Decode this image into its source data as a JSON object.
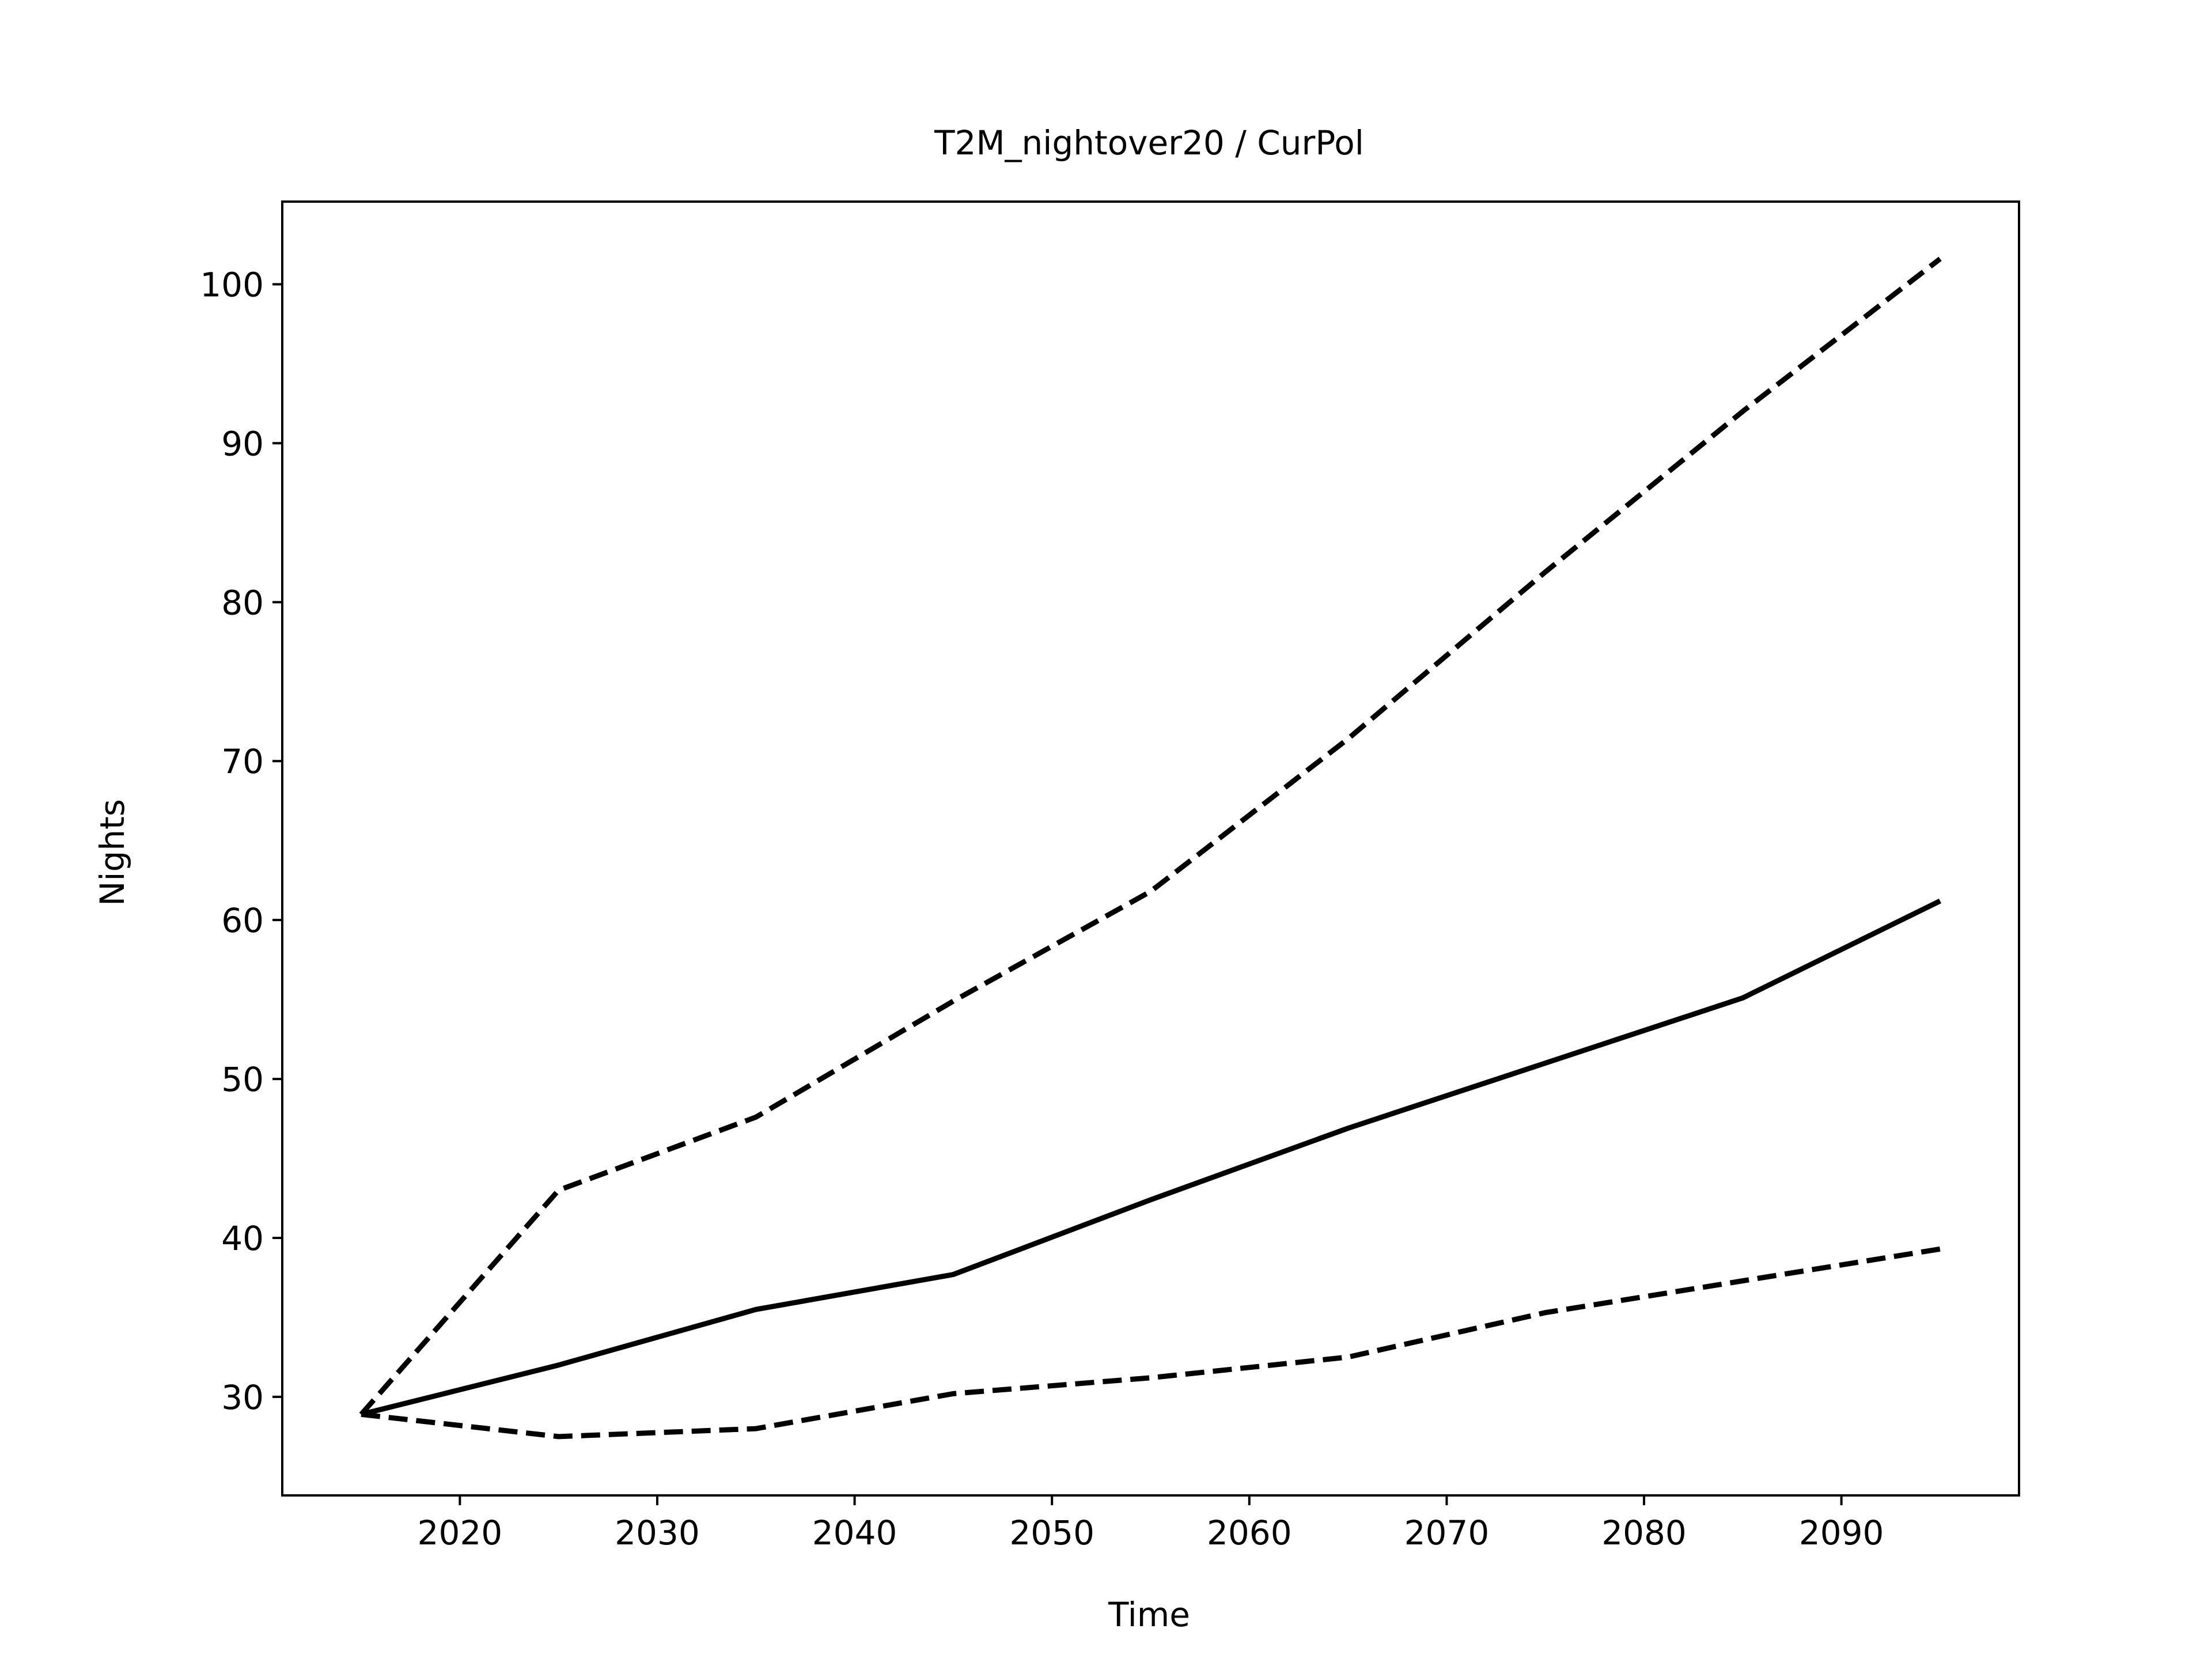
{
  "chart_data": {
    "type": "line",
    "title": "T2M_nightover20 / CurPol",
    "xlabel": "Time",
    "ylabel": "Nights",
    "xlim": [
      2011,
      2099
    ],
    "ylim": [
      23.8,
      105.2
    ],
    "xticks": [
      2020,
      2030,
      2040,
      2050,
      2060,
      2070,
      2080,
      2090
    ],
    "yticks": [
      30,
      40,
      50,
      60,
      70,
      80,
      90,
      100
    ],
    "grid": false,
    "legend": "none",
    "series": [
      {
        "style": "solid",
        "color": "#000000",
        "x": [
          2015,
          2025,
          2035,
          2045,
          2055,
          2065,
          2075,
          2085,
          2095
        ],
        "y": [
          28.9,
          32.0,
          35.5,
          37.7,
          42.4,
          46.9,
          51.0,
          55.1,
          61.2
        ]
      },
      {
        "style": "dashed",
        "color": "#000000",
        "x": [
          2015,
          2025,
          2035,
          2045,
          2055,
          2065,
          2075,
          2085,
          2095
        ],
        "y": [
          28.9,
          43.0,
          47.6,
          54.9,
          61.8,
          71.4,
          81.9,
          92.0,
          101.6
        ]
      },
      {
        "style": "dashed",
        "color": "#000000",
        "x": [
          2015,
          2025,
          2035,
          2045,
          2055,
          2065,
          2075,
          2085,
          2095
        ],
        "y": [
          28.9,
          27.5,
          28.0,
          30.2,
          31.2,
          32.5,
          35.3,
          37.3,
          39.3
        ]
      }
    ]
  }
}
